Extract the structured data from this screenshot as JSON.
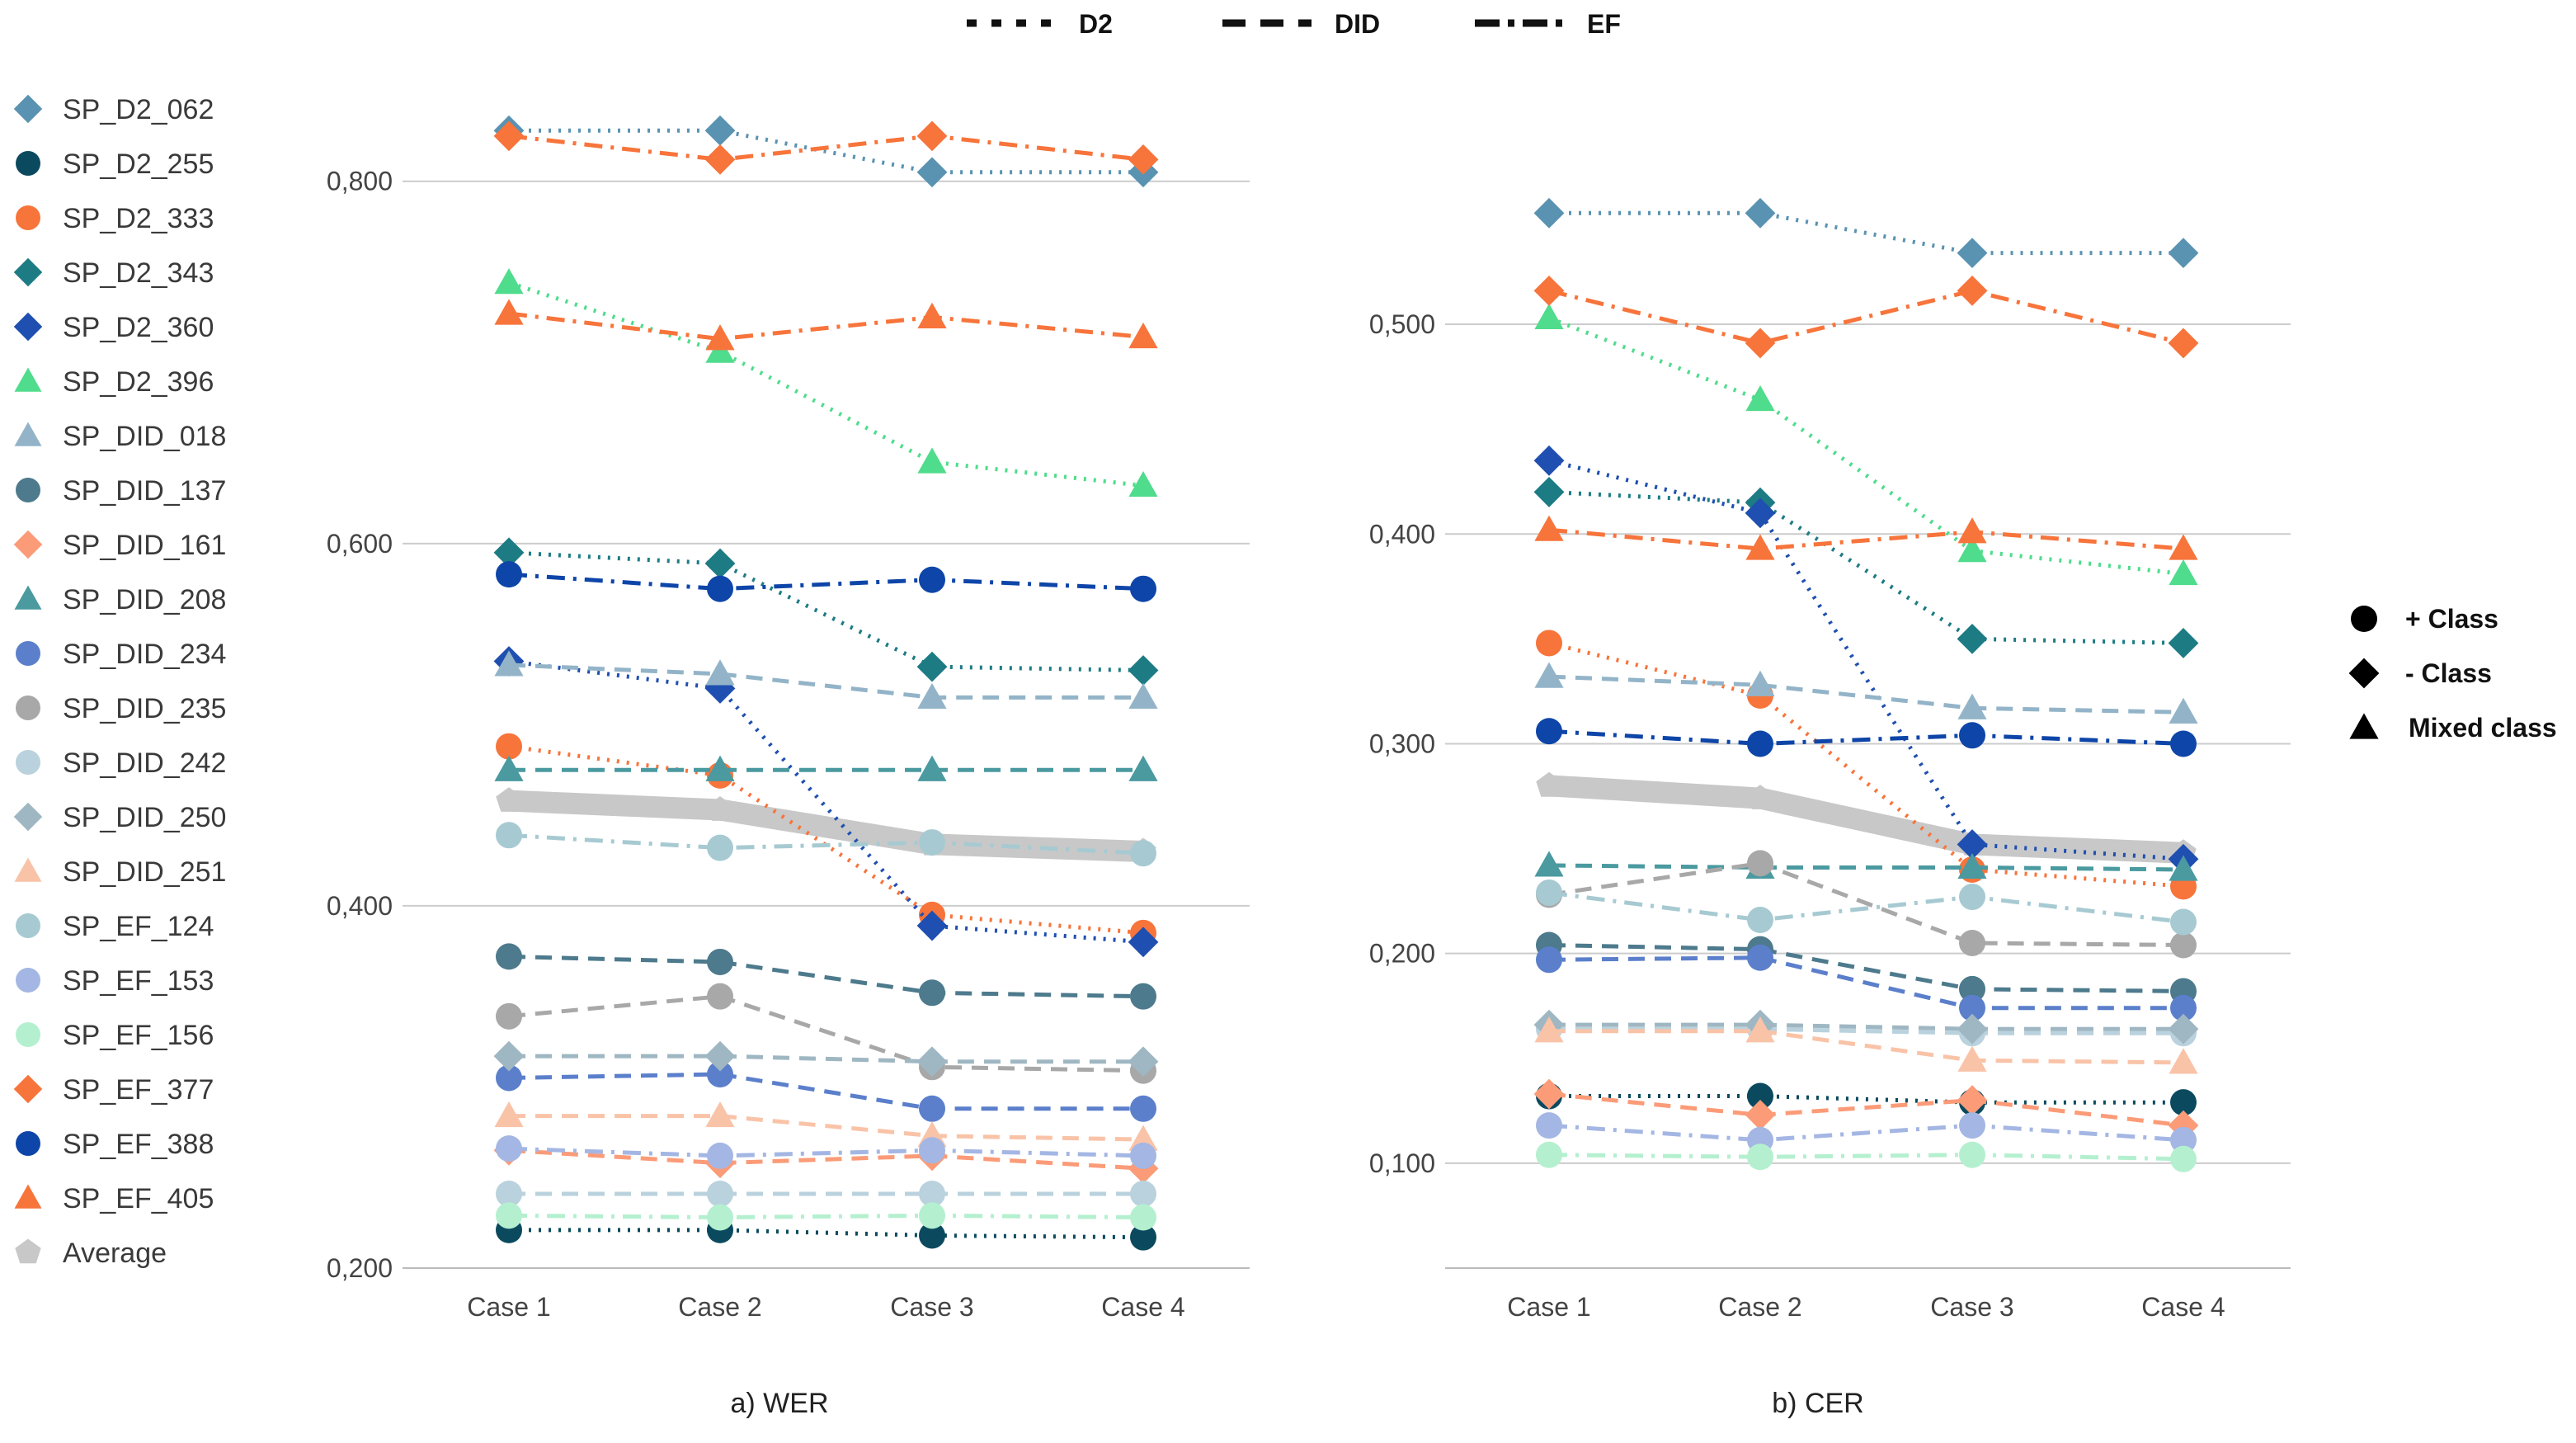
{
  "line_styles": [
    {
      "id": "d2",
      "label": "D2",
      "dash": "dot"
    },
    {
      "id": "did",
      "label": "DID",
      "dash": "dash"
    },
    {
      "id": "ef",
      "label": "EF",
      "dash": "dashdot"
    }
  ],
  "shape_legend": [
    {
      "id": "circle",
      "label": "+ Class"
    },
    {
      "id": "diamond",
      "label": "- Class"
    },
    {
      "id": "triangle",
      "label": "Mixed class"
    }
  ],
  "chart_data": [
    {
      "type": "line",
      "caption": "a) WER",
      "categories": [
        "Case 1",
        "Case 2",
        "Case 3",
        "Case 4"
      ],
      "ylim": [
        0.2,
        0.86
      ],
      "yticks": [
        0.2,
        0.4,
        0.6,
        0.8
      ],
      "ytick_labels": [
        "0,200",
        "0,400",
        "0,600",
        "0,800"
      ],
      "grid": true,
      "series": [
        {
          "name": "SP_D2_062",
          "color": "#5a93b2",
          "marker": "diamond",
          "dash": "dot",
          "values": [
            0.828,
            0.828,
            0.805,
            0.805
          ]
        },
        {
          "name": "SP_D2_255",
          "color": "#0b4a5e",
          "marker": "circle",
          "dash": "dot",
          "values": [
            0.221,
            0.221,
            0.218,
            0.217
          ]
        },
        {
          "name": "SP_D2_333",
          "color": "#f7743b",
          "marker": "circle",
          "dash": "dot",
          "values": [
            0.488,
            0.472,
            0.395,
            0.385
          ]
        },
        {
          "name": "SP_D2_343",
          "color": "#1d7b84",
          "marker": "diamond",
          "dash": "dot",
          "values": [
            0.595,
            0.589,
            0.532,
            0.53
          ]
        },
        {
          "name": "SP_D2_360",
          "color": "#1f4fb0",
          "marker": "diamond",
          "dash": "dot",
          "values": [
            0.535,
            0.52,
            0.389,
            0.38
          ]
        },
        {
          "name": "SP_D2_396",
          "color": "#4fdc8c",
          "marker": "triangle",
          "dash": "dot",
          "values": [
            0.744,
            0.706,
            0.645,
            0.632
          ]
        },
        {
          "name": "SP_DID_018",
          "color": "#93b4c8",
          "marker": "triangle",
          "dash": "dash",
          "values": [
            0.533,
            0.528,
            0.515,
            0.515
          ]
        },
        {
          "name": "SP_DID_137",
          "color": "#4d7a8c",
          "marker": "circle",
          "dash": "dash",
          "values": [
            0.372,
            0.369,
            0.352,
            0.35
          ]
        },
        {
          "name": "SP_DID_161",
          "color": "#fb9b78",
          "marker": "diamond",
          "dash": "dash",
          "values": [
            0.265,
            0.258,
            0.262,
            0.255
          ]
        },
        {
          "name": "SP_DID_208",
          "color": "#4a9aa0",
          "marker": "triangle",
          "dash": "dash",
          "values": [
            0.475,
            0.475,
            0.475,
            0.475
          ]
        },
        {
          "name": "SP_DID_234",
          "color": "#5b7fcb",
          "marker": "circle",
          "dash": "dash",
          "values": [
            0.305,
            0.307,
            0.288,
            0.288
          ]
        },
        {
          "name": "SP_DID_235",
          "color": "#a8a8a8",
          "marker": "circle",
          "dash": "dash",
          "values": [
            0.339,
            0.35,
            0.311,
            0.309
          ]
        },
        {
          "name": "SP_DID_242",
          "color": "#b9d2dd",
          "marker": "circle",
          "dash": "dash",
          "values": [
            0.241,
            0.241,
            0.241,
            0.241
          ]
        },
        {
          "name": "SP_DID_250",
          "color": "#9fb7c2",
          "marker": "diamond",
          "dash": "dash",
          "values": [
            0.317,
            0.317,
            0.314,
            0.314
          ]
        },
        {
          "name": "SP_DID_251",
          "color": "#f9c3a8",
          "marker": "triangle",
          "dash": "dash",
          "values": [
            0.284,
            0.284,
            0.273,
            0.271
          ]
        },
        {
          "name": "SP_EF_124",
          "color": "#a7cad2",
          "marker": "circle",
          "dash": "dashdot",
          "values": [
            0.439,
            0.432,
            0.435,
            0.429
          ]
        },
        {
          "name": "SP_EF_153",
          "color": "#a4b6e3",
          "marker": "circle",
          "dash": "dashdot",
          "values": [
            0.266,
            0.262,
            0.265,
            0.262
          ]
        },
        {
          "name": "SP_EF_156",
          "color": "#b4f0cf",
          "marker": "circle",
          "dash": "dashdot",
          "values": [
            0.229,
            0.228,
            0.229,
            0.228
          ]
        },
        {
          "name": "SP_EF_377",
          "color": "#f7743b",
          "marker": "diamond",
          "dash": "dashdot",
          "values": [
            0.825,
            0.812,
            0.825,
            0.812
          ]
        },
        {
          "name": "SP_EF_388",
          "color": "#0e45a8",
          "marker": "circle",
          "dash": "dashdot",
          "values": [
            0.583,
            0.575,
            0.58,
            0.575
          ]
        },
        {
          "name": "SP_EF_405",
          "color": "#f7743b",
          "marker": "triangle",
          "dash": "dashdot",
          "values": [
            0.727,
            0.713,
            0.725,
            0.714
          ]
        },
        {
          "name": "Average",
          "color": "#c8c8c8",
          "marker": "pentagon",
          "dash": "thick",
          "values": [
            0.458,
            0.453,
            0.434,
            0.43
          ]
        }
      ]
    },
    {
      "type": "line",
      "caption": "b) CER",
      "categories": [
        "Case 1",
        "Case 2",
        "Case 3",
        "Case 4"
      ],
      "ylim": [
        0.05,
        0.62
      ],
      "yticks": [
        0.1,
        0.2,
        0.3,
        0.4,
        0.5
      ],
      "ytick_labels": [
        "0,100",
        "0,200",
        "0,300",
        "0,400",
        "0,500"
      ],
      "grid": true,
      "series": [
        {
          "name": "SP_D2_062",
          "color": "#5a93b2",
          "marker": "diamond",
          "dash": "dot",
          "values": [
            0.553,
            0.553,
            0.534,
            0.534
          ]
        },
        {
          "name": "SP_D2_255",
          "color": "#0b4a5e",
          "marker": "circle",
          "dash": "dot",
          "values": [
            0.132,
            0.132,
            0.129,
            0.129
          ]
        },
        {
          "name": "SP_D2_333",
          "color": "#f7743b",
          "marker": "circle",
          "dash": "dot",
          "values": [
            0.348,
            0.323,
            0.24,
            0.232
          ]
        },
        {
          "name": "SP_D2_343",
          "color": "#1d7b84",
          "marker": "diamond",
          "dash": "dot",
          "values": [
            0.42,
            0.415,
            0.35,
            0.348
          ]
        },
        {
          "name": "SP_D2_360",
          "color": "#1f4fb0",
          "marker": "diamond",
          "dash": "dot",
          "values": [
            0.435,
            0.41,
            0.252,
            0.245
          ]
        },
        {
          "name": "SP_D2_396",
          "color": "#4fdc8c",
          "marker": "triangle",
          "dash": "dot",
          "values": [
            0.503,
            0.464,
            0.392,
            0.381
          ]
        },
        {
          "name": "SP_DID_018",
          "color": "#93b4c8",
          "marker": "triangle",
          "dash": "dash",
          "values": [
            0.332,
            0.328,
            0.317,
            0.315
          ]
        },
        {
          "name": "SP_DID_137",
          "color": "#4d7a8c",
          "marker": "circle",
          "dash": "dash",
          "values": [
            0.204,
            0.202,
            0.183,
            0.182
          ]
        },
        {
          "name": "SP_DID_161",
          "color": "#fb9b78",
          "marker": "diamond",
          "dash": "dash",
          "values": [
            0.133,
            0.123,
            0.13,
            0.118
          ]
        },
        {
          "name": "SP_DID_208",
          "color": "#4a9aa0",
          "marker": "triangle",
          "dash": "dash",
          "values": [
            0.242,
            0.241,
            0.241,
            0.24
          ]
        },
        {
          "name": "SP_DID_234",
          "color": "#5b7fcb",
          "marker": "circle",
          "dash": "dash",
          "values": [
            0.197,
            0.198,
            0.174,
            0.174
          ]
        },
        {
          "name": "SP_DID_235",
          "color": "#a8a8a8",
          "marker": "circle",
          "dash": "dash",
          "values": [
            0.228,
            0.243,
            0.205,
            0.204
          ]
        },
        {
          "name": "SP_DID_242",
          "color": "#b9d2dd",
          "marker": "circle",
          "dash": "dash",
          "values": [
            0.164,
            0.164,
            0.162,
            0.162
          ]
        },
        {
          "name": "SP_DID_250",
          "color": "#9fb7c2",
          "marker": "diamond",
          "dash": "dash",
          "values": [
            0.166,
            0.166,
            0.164,
            0.164
          ]
        },
        {
          "name": "SP_DID_251",
          "color": "#f9c3a8",
          "marker": "triangle",
          "dash": "dash",
          "values": [
            0.163,
            0.163,
            0.149,
            0.148
          ]
        },
        {
          "name": "SP_EF_124",
          "color": "#a7cad2",
          "marker": "circle",
          "dash": "dashdot",
          "values": [
            0.229,
            0.216,
            0.227,
            0.215
          ]
        },
        {
          "name": "SP_EF_153",
          "color": "#a4b6e3",
          "marker": "circle",
          "dash": "dashdot",
          "values": [
            0.118,
            0.111,
            0.118,
            0.111
          ]
        },
        {
          "name": "SP_EF_156",
          "color": "#b4f0cf",
          "marker": "circle",
          "dash": "dashdot",
          "values": [
            0.104,
            0.103,
            0.104,
            0.102
          ]
        },
        {
          "name": "SP_EF_377",
          "color": "#f7743b",
          "marker": "diamond",
          "dash": "dashdot",
          "values": [
            0.516,
            0.491,
            0.516,
            0.491
          ]
        },
        {
          "name": "SP_EF_388",
          "color": "#0e45a8",
          "marker": "circle",
          "dash": "dashdot",
          "values": [
            0.306,
            0.3,
            0.304,
            0.3
          ]
        },
        {
          "name": "SP_EF_405",
          "color": "#f7743b",
          "marker": "triangle",
          "dash": "dashdot",
          "values": [
            0.402,
            0.393,
            0.401,
            0.393
          ]
        },
        {
          "name": "Average",
          "color": "#c8c8c8",
          "marker": "pentagon",
          "dash": "thick",
          "values": [
            0.28,
            0.274,
            0.252,
            0.248
          ]
        }
      ]
    }
  ]
}
